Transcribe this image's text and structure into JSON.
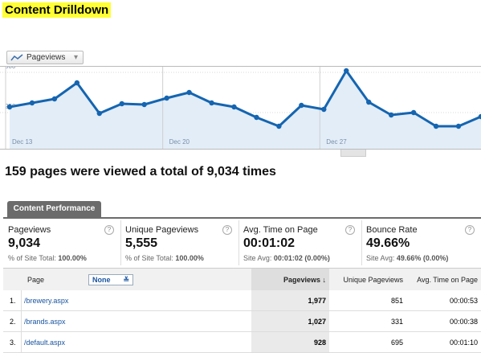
{
  "header": {
    "title": "Content Drilldown"
  },
  "chart_data": {
    "type": "line",
    "categories": [
      "Dec 13",
      null,
      null,
      null,
      null,
      null,
      null,
      "Dec 20",
      null,
      null,
      null,
      null,
      null,
      null,
      "Dec 27",
      null,
      null,
      null,
      null,
      null,
      null,
      null
    ],
    "series": [
      {
        "name": "Pageviews",
        "color": "#1565b0",
        "values": [
          285,
          310,
          335,
          435,
          245,
          305,
          300,
          340,
          375,
          310,
          285,
          220,
          165,
          295,
          270,
          510,
          315,
          235,
          250,
          165,
          165,
          225
        ]
      }
    ],
    "ylim": [
      20,
      540
    ],
    "yticks": [
      250,
      500
    ],
    "grid": true
  },
  "summary": "159 pages were viewed a total of 9,034 times",
  "tab": "Content Performance",
  "scorecards": [
    {
      "label": "Pageviews",
      "value": "9,034",
      "sub_label": "% of Site Total:",
      "sub_value": "100.00%"
    },
    {
      "label": "Unique Pageviews",
      "value": "5,555",
      "sub_label": "% of Site Total:",
      "sub_value": "100.00%"
    },
    {
      "label": "Avg. Time on Page",
      "value": "00:01:02",
      "sub_label": "Site Avg:",
      "sub_value": "00:01:02 (0.00%)"
    },
    {
      "label": "Bounce Rate",
      "value": "49.66%",
      "sub_label": "Site Avg:",
      "sub_value": "49.66% (0.00%)"
    }
  ],
  "table": {
    "columns": [
      "Page",
      "Pageviews ↓",
      "Unique Pageviews",
      "Avg. Time on Page"
    ],
    "filter": "None",
    "rows": [
      [
        "1.",
        "/brewery.aspx",
        "1,977",
        "851",
        "00:00:53"
      ],
      [
        "2.",
        "/brands.aspx",
        "1,027",
        "331",
        "00:00:38"
      ],
      [
        "3.",
        "/default.aspx",
        "928",
        "695",
        "00:01:10"
      ]
    ]
  }
}
